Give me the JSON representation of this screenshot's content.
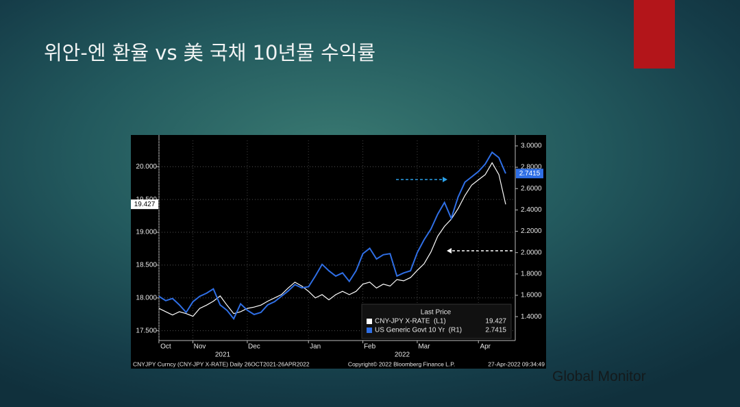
{
  "slide": {
    "title": "위안-엔 환율 vs 美 국채 10년물 수익률",
    "brand": "Global Monitor"
  },
  "chart_data": {
    "type": "line",
    "categories": [
      null,
      "Oct",
      null,
      null,
      null,
      null,
      "Nov",
      null,
      null,
      null,
      null,
      null,
      null,
      null,
      "Dec",
      null,
      null,
      null,
      null,
      null,
      null,
      null,
      null,
      "Jan",
      null,
      null,
      null,
      null,
      null,
      null,
      null,
      "Feb",
      null,
      null,
      null,
      null,
      null,
      null,
      null,
      "Mar",
      null,
      null,
      null,
      null,
      null,
      null,
      null,
      null,
      "Apr",
      null,
      null,
      null
    ],
    "x_group_labels": [
      "2021",
      "2022"
    ],
    "series": [
      {
        "name": "CNY-JPY X-RATE  (L1)",
        "color": "#ffffff",
        "axis": "y",
        "values": [
          17.84,
          17.79,
          17.74,
          17.79,
          17.76,
          17.72,
          17.84,
          17.89,
          17.95,
          18.03,
          17.89,
          17.76,
          17.79,
          17.84,
          17.86,
          17.89,
          17.95,
          18.0,
          18.05,
          18.15,
          18.24,
          18.18,
          18.1,
          18.0,
          18.05,
          17.97,
          18.05,
          18.1,
          18.05,
          18.1,
          18.21,
          18.24,
          18.15,
          18.21,
          18.18,
          18.28,
          18.26,
          18.31,
          18.42,
          18.52,
          18.7,
          18.94,
          19.09,
          19.2,
          19.36,
          19.56,
          19.72,
          19.8,
          19.88,
          20.06,
          19.88,
          19.427
        ]
      },
      {
        "name": "US Generic Govt 10 Yr  (R1)",
        "color": "#2f6fe6",
        "axis": "y2",
        "values": [
          1.59,
          1.55,
          1.57,
          1.51,
          1.44,
          1.54,
          1.59,
          1.62,
          1.66,
          1.51,
          1.46,
          1.38,
          1.52,
          1.46,
          1.42,
          1.44,
          1.51,
          1.54,
          1.59,
          1.64,
          1.7,
          1.67,
          1.68,
          1.78,
          1.89,
          1.83,
          1.78,
          1.81,
          1.73,
          1.83,
          1.99,
          2.04,
          1.94,
          1.98,
          1.99,
          1.78,
          1.81,
          1.83,
          2.0,
          2.12,
          2.22,
          2.36,
          2.47,
          2.32,
          2.52,
          2.66,
          2.71,
          2.76,
          2.83,
          2.94,
          2.89,
          2.7415
        ]
      }
    ],
    "ylim": [
      17.35,
      20.4
    ],
    "yticks": [
      {
        "value": 17.5,
        "label": "17.500"
      },
      {
        "value": 18,
        "label": "18.000"
      },
      {
        "value": 18.5,
        "label": "18.500"
      },
      {
        "value": 19,
        "label": "19.000"
      },
      {
        "value": 19.5,
        "label": "19.500"
      },
      {
        "value": 20,
        "label": "20.000"
      }
    ],
    "y2lim": [
      1.176,
      3.051
    ],
    "y2ticks": [
      {
        "value": 1.4,
        "label": "1.4000"
      },
      {
        "value": 1.6,
        "label": "1.6000"
      },
      {
        "value": 1.8,
        "label": "1.8000"
      },
      {
        "value": 2,
        "label": "2.0000"
      },
      {
        "value": 2.2,
        "label": "2.2000"
      },
      {
        "value": 2.4,
        "label": "2.4000"
      },
      {
        "value": 2.6,
        "label": "2.6000"
      },
      {
        "value": 2.8,
        "label": "2.8000"
      },
      {
        "value": 3,
        "label": "3.0000"
      }
    ],
    "grid": true,
    "legend_title": "Last Price",
    "legend": "bottom-right",
    "footer": [
      "CNYJPY Curncy (CNY-JPY X-RATE)  Daily 26OCT2021-26APR2022",
      "Copyright© 2022 Bloomberg Finance L.P.",
      "27-Apr-2022 09:34:49"
    ]
  }
}
